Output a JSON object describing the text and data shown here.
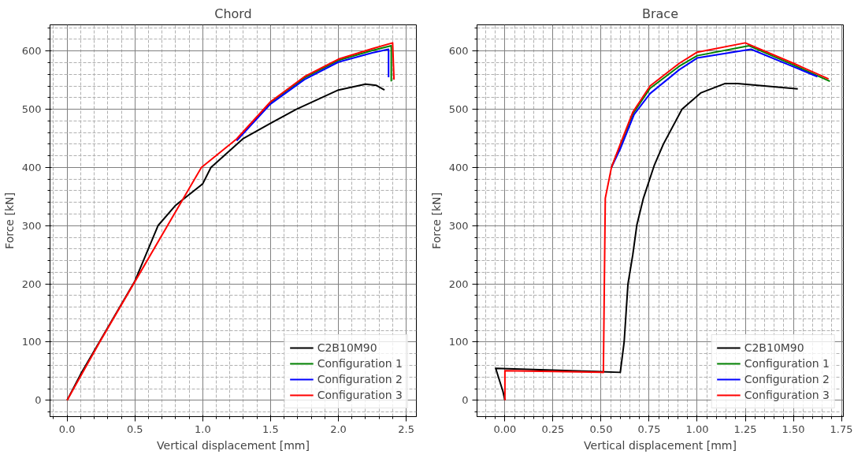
{
  "chart_data": [
    {
      "type": "line",
      "title": "Chord",
      "xlabel": "Vertical displacement [mm]",
      "ylabel": "Force [kN]",
      "xlim": [
        -0.126,
        2.575
      ],
      "ylim": [
        -28,
        645
      ],
      "xticks": [
        {
          "value": 0,
          "label": "0.0"
        },
        {
          "value": 0.5,
          "label": "0.5"
        },
        {
          "value": 1,
          "label": "1.0"
        },
        {
          "value": 1.5,
          "label": "1.5"
        },
        {
          "value": 2,
          "label": "2.0"
        },
        {
          "value": 2.5,
          "label": "2.5"
        }
      ],
      "yticks": [
        0,
        100,
        200,
        300,
        400,
        500,
        600
      ],
      "grid": true,
      "legend": "bottom right",
      "series": [
        {
          "name": "C2B10M90",
          "color": "#000000",
          "x": [
            0,
            0.1,
            0.25,
            0.5,
            0.67,
            0.8,
            1.0,
            1.06,
            1.3,
            1.5,
            1.69,
            2.0,
            2.2,
            2.28,
            2.34
          ],
          "values": [
            0,
            45,
            105,
            205,
            300,
            335,
            372,
            400,
            450,
            476,
            500,
            533,
            543,
            541,
            533
          ]
        },
        {
          "name": "Configuration 1",
          "color": "#008000",
          "x": [
            1.25,
            1.5,
            1.75,
            2.0,
            2.25,
            2.39,
            2.39
          ],
          "values": [
            448,
            512,
            554,
            584,
            601,
            609,
            548
          ]
        },
        {
          "name": "Configuration 2",
          "color": "#0000ff",
          "x": [
            1.25,
            1.5,
            1.75,
            2.0,
            2.25,
            2.37,
            2.37
          ],
          "values": [
            446,
            509,
            551,
            581,
            597,
            603,
            555
          ]
        },
        {
          "name": "Configuration 3",
          "color": "#ff0000",
          "x": [
            0,
            0.24,
            0.49,
            0.74,
            0.99,
            1.25,
            1.5,
            1.75,
            2.0,
            2.25,
            2.4,
            2.41
          ],
          "values": [
            0,
            100,
            200,
            300,
            400,
            449,
            513,
            556,
            586,
            604,
            614,
            551
          ]
        }
      ]
    },
    {
      "type": "line",
      "title": "Brace",
      "xlabel": "Vertical displacement [mm]",
      "ylabel": "Force [kN]",
      "xlim": [
        -0.145,
        1.76
      ],
      "ylim": [
        -28,
        645
      ],
      "xticks": [
        {
          "value": 0,
          "label": "0.00"
        },
        {
          "value": 0.25,
          "label": "0.25"
        },
        {
          "value": 0.5,
          "label": "0.50"
        },
        {
          "value": 0.75,
          "label": "0.75"
        },
        {
          "value": 1,
          "label": "1.00"
        },
        {
          "value": 1.25,
          "label": "1.25"
        },
        {
          "value": 1.5,
          "label": "1.50"
        },
        {
          "value": 1.75,
          "label": "1.75"
        }
      ],
      "yticks": [
        0,
        100,
        200,
        300,
        400,
        500,
        600
      ],
      "grid": true,
      "legend": "bottom right",
      "series": [
        {
          "name": "C2B10M90",
          "color": "#000000",
          "x": [
            0,
            -0.01,
            -0.048,
            0.6,
            0.62,
            0.63,
            0.64,
            0.665,
            0.686,
            0.72,
            0.776,
            0.824,
            0.921,
            1.018,
            1.143,
            1.21,
            1.523
          ],
          "values": [
            0,
            15,
            55,
            48,
            100,
            150,
            200,
            250,
            301,
            347,
            403,
            440,
            500,
            528,
            544,
            544,
            535
          ]
        },
        {
          "name": "Configuration 1",
          "color": "#008000",
          "x": [
            0.554,
            0.6,
            0.667,
            0.755,
            0.907,
            1.0,
            1.27,
            1.5,
            1.69
          ],
          "values": [
            400,
            438,
            493,
            536,
            574,
            592,
            609,
            576,
            548
          ]
        },
        {
          "name": "Configuration 2",
          "color": "#0000ff",
          "x": [
            0.554,
            0.6,
            0.672,
            0.755,
            0.907,
            1.0,
            1.28,
            1.5,
            1.625
          ],
          "values": [
            400,
            432,
            491,
            527,
            568,
            588,
            603,
            573,
            556
          ]
        },
        {
          "name": "Configuration 3",
          "color": "#ff0000",
          "x": [
            0,
            0,
            0.512,
            0.522,
            0.554,
            0.6,
            0.665,
            0.755,
            0.907,
            1.0,
            1.25,
            1.5,
            1.683
          ],
          "values": [
            0,
            51,
            48,
            347,
            400,
            440,
            495,
            540,
            579,
            598,
            614,
            579,
            552
          ]
        }
      ]
    }
  ]
}
